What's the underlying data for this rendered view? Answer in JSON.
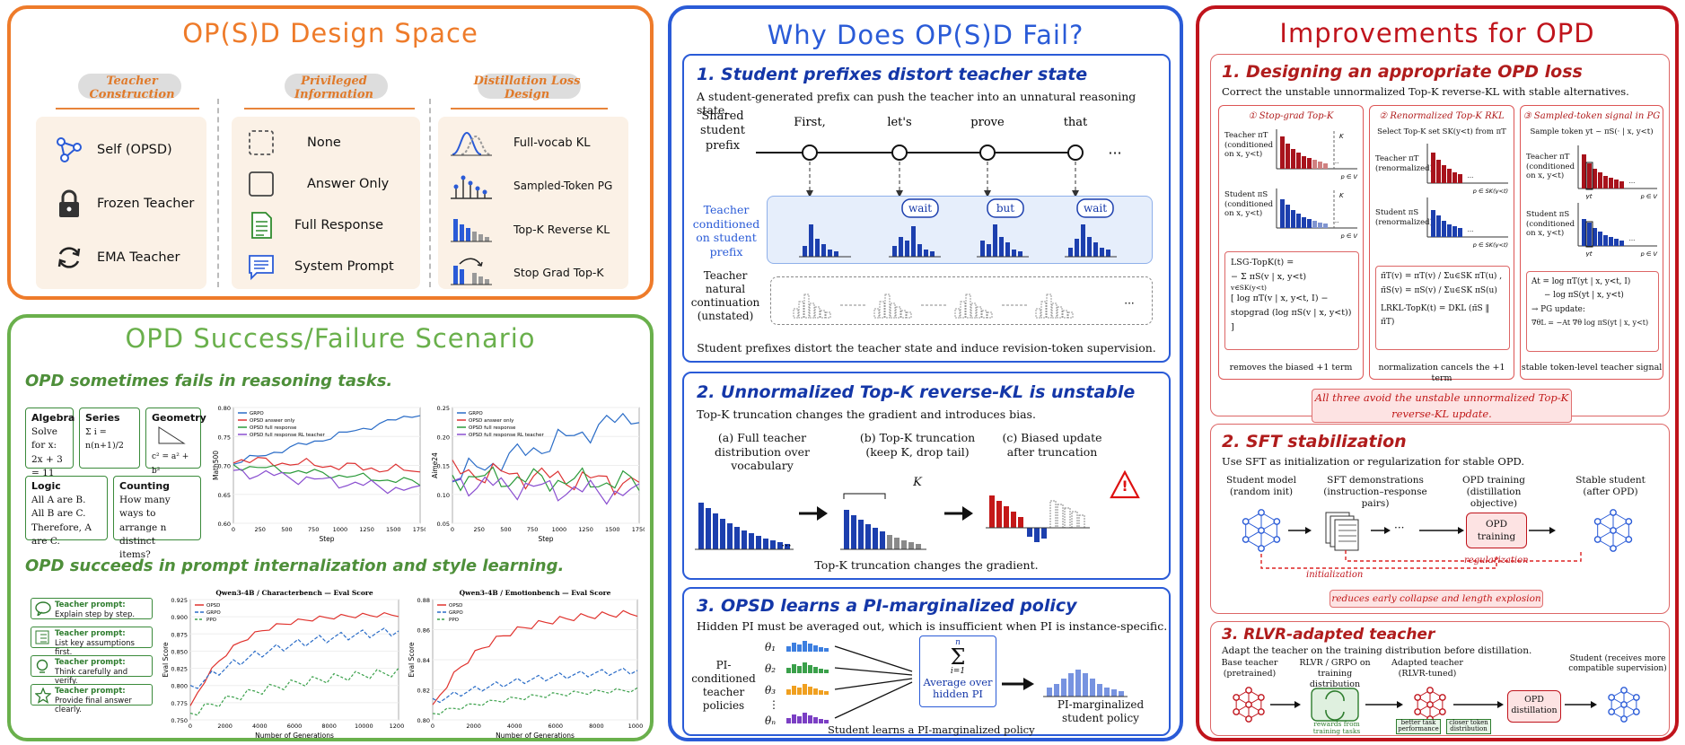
{
  "panel1": {
    "title": "OP(S)D Design Space",
    "col1_head": "Teacher Construction",
    "col2_head": "Privileged Information",
    "col3_head": "Distillation Loss Design",
    "teacher": [
      "Self (OPSD)",
      "Frozen Teacher",
      "EMA Teacher"
    ],
    "info": [
      "None",
      "Answer Only",
      "Full Response",
      "System Prompt"
    ],
    "loss": [
      "Full-vocab KL",
      "Sampled-Token PG",
      "Top-K Reverse KL",
      "Stop Grad Top-K"
    ],
    "icons": [
      "graph-icon",
      "lock-icon",
      "refresh-icon",
      "dashed-square-icon",
      "square-icon",
      "document-icon",
      "chat-icon",
      "distribution-icon",
      "stem-icon",
      "bar-icon",
      "swap-bar-icon"
    ]
  },
  "panel2": {
    "title": "OPD Success/Failure Scenario",
    "h1": "OPD sometimes fails in reasoning tasks.",
    "h2": "OPD succeeds in prompt internalization and style learning.",
    "cards": {
      "algebra_t": "Algebra",
      "algebra_1": "Solve for x:",
      "algebra_2": "2x + 3 = 11",
      "series_t": "Series",
      "series_1": "Σ i = n(n+1)/2",
      "geometry_t": "Geometry",
      "geometry_1": "c² = a² + b²",
      "logic_t": "Logic",
      "logic_1": "All A are B.",
      "logic_2": "All B are C.",
      "logic_3": "Therefore, A are C.",
      "counting_t": "Counting",
      "counting_1": "How many ways to",
      "counting_2": "arrange n distinct",
      "counting_3": "items?"
    },
    "prompts": [
      {
        "t": "Teacher prompt:",
        "s": "Explain step by step."
      },
      {
        "t": "Teacher prompt:",
        "s": "List key assumptions first."
      },
      {
        "t": "Teacher prompt:",
        "s": "Think carefully and verify."
      },
      {
        "t": "Teacher prompt:",
        "s": "Provide final answer clearly."
      }
    ],
    "chart_a": {
      "ylabel": "Math500",
      "xlabel": "Step",
      "ticks_x": [
        "0",
        "250",
        "500",
        "750",
        "1000",
        "1250",
        "1500",
        "1750"
      ],
      "ticks_y": [
        "0.80",
        "0.75",
        "0.70",
        "0.65",
        "0.60"
      ],
      "legend": [
        "GRPO",
        "OPSD answer only",
        "OPSD full response",
        "OPSD full response RL teacher"
      ]
    },
    "chart_b": {
      "ylabel": "Aime24",
      "xlabel": "Step",
      "ticks_x": [
        "0",
        "250",
        "500",
        "750",
        "1000",
        "1250",
        "1500",
        "1750"
      ],
      "ticks_y": [
        "0.25",
        "0.20",
        "0.15",
        "0.10",
        "0.05"
      ],
      "legend": [
        "GRPO",
        "OPSD answer only",
        "OPSD full response",
        "OPSD full response RL teacher"
      ]
    },
    "chart_c": {
      "title": "Qwen3-4B / Characterbench — Eval Score",
      "ylabel": "Eval Score",
      "xlabel": "Number of Generations",
      "ticks_x": [
        "0",
        "2000",
        "4000",
        "6000",
        "8000",
        "10000",
        "12000"
      ],
      "ticks_y": [
        "0.925",
        "0.900",
        "0.875",
        "0.850",
        "0.825",
        "0.800",
        "0.775",
        "0.750"
      ],
      "legend": [
        "OPSD",
        "GRPO",
        "PPO"
      ]
    },
    "chart_d": {
      "title": "Qwen3-4B / Emotionbench — Eval Score",
      "ylabel": "Eval Score",
      "xlabel": "Number of Generations",
      "ticks_x": [
        "0",
        "2000",
        "4000",
        "6000",
        "8000",
        "10000"
      ],
      "ticks_y": [
        "0.88",
        "0.86",
        "0.84",
        "0.82",
        "0.80"
      ],
      "legend": [
        "OPSD",
        "GRPO",
        "PPO"
      ]
    }
  },
  "panel3": {
    "title": "Why Does OP(S)D Fail?",
    "s1": {
      "h": "1. Student prefixes distort teacher state",
      "sub": "A student-generated prefix can push the teacher into an unnatural reasoning state.",
      "shared": "Shared student prefix",
      "tokens": [
        "First,",
        "let's",
        "prove",
        "that"
      ],
      "dots": "···",
      "teacher_cond": "Teacher conditioned on student prefix",
      "bubbles": [
        "wait",
        "but",
        "wait"
      ],
      "teacher_nat": "Teacher natural continuation (unstated)",
      "caption": "Student prefixes distort the teacher state and induce revision-token supervision."
    },
    "s2": {
      "h": "2. Unnormalized Top-K reverse-KL is unstable",
      "sub": "Top-K truncation changes the gradient and introduces bias.",
      "a": "(a) Full teacher distribution over vocabulary",
      "b": "(b) Top-K truncation (keep K, drop tail)",
      "c": "(c) Biased update after truncation",
      "k": "K",
      "caption": "Top-K truncation changes the gradient.",
      "warn": "!"
    },
    "s3": {
      "h": "3. OPSD learns a PI-marginalized policy",
      "sub": "Hidden PI must be averaged out, which is insufficient when PI is instance-specific.",
      "left": "PI-conditioned teacher policies",
      "thetas": [
        "θ₁",
        "θ₂",
        "θ₃",
        "⋮",
        "θₙ"
      ],
      "sum_top": "n",
      "sum": "Σ",
      "sum_bot": "i=1",
      "avg": "Average over hidden PI",
      "right": "PI-marginalized student policy",
      "caption": "Student learns a PI-marginalized policy"
    }
  },
  "panel4": {
    "title": "Improvements for OPD",
    "s1": {
      "h": "1. Designing an appropriate OPD loss",
      "sub": "Correct the unstable unnormalized Top-K reverse-KL with stable alternatives.",
      "c1": "① Stop-grad Top-K",
      "c2": "② Renormalized Top-K RKL",
      "c3": "③ Sampled-token signal in PG",
      "c1_teacher": "Teacher πT (conditioned on x, y<t)",
      "c1_student": "Student πS (conditioned on x, y<t)",
      "c2_sel": "Select Top-K set SK(y<t) from πT",
      "c2_teacher": "Teacher πT (renormalized)",
      "c2_student": "Student πS (renormalized)",
      "c3_sample": "Sample token yt ~ πS(· | x, y<t)",
      "c3_teacher": "Teacher πT (conditioned on x, y<t)",
      "c3_student": "Student πS (conditioned on x, y<t)",
      "axis_v": "p ∈ V",
      "axis_s": "p ∈ SK(y<t)",
      "kmark": "K",
      "yt": "yt",
      "f1a": "LSG-TopK(t) =",
      "f1b": "− Σ πS(v | x, y<t)",
      "f1c": "v∈SK(y<t)",
      "f1d": "[ log πT(v | x, y<t, I) −",
      "f1e": "stopgrad (log πS(v | x, y<t)) ]",
      "f2a": "π̄T(v) = πT(v) / Σu∈SK πT(u) ,",
      "f2b": "π̄S(v) = πS(v) / Σu∈SK πS(u)",
      "f2c": "LRKL-TopK(t) = DKL (π̄S ‖ π̄T)",
      "f3a": "At = log πT(yt | x, y<t, I)",
      "f3b": "− log πS(yt | x, y<t)",
      "f3c": "→ PG update:",
      "f3d": "∇θL = −At ∇θ log πS(yt | x, y<t)",
      "n1": "removes the biased +1 term",
      "n2": "normalization cancels the +1 term",
      "n3": "stable token-level teacher signal",
      "bar": "All three avoid the unstable unnormalized Top-K reverse-KL update."
    },
    "s2": {
      "h": "2. SFT stabilization",
      "sub": "Use SFT as initialization or regularization for stable OPD.",
      "n1": "Student model (random init)",
      "n2": "SFT demonstrations (instruction–response pairs)",
      "n3": "OPD training (distillation objective)",
      "n4": "Stable student (after OPD)",
      "box": "OPD training",
      "init": "initialization",
      "reg": "regularization",
      "dots": "···",
      "bar": "reduces early collapse and length explosion"
    },
    "s3": {
      "h": "3. RLVR-adapted teacher",
      "sub": "Adapt the teacher on the training distribution before distillation.",
      "n1": "Base teacher (pretrained)",
      "n2": "RLVR / GRPO on training distribution",
      "n3": "Adapted teacher (RLVR-tuned)",
      "n4": "Student (receives more compatible supervision)",
      "box": "OPD distillation",
      "reward": "rewards from training tasks",
      "b1": "better task performance",
      "b2": "closer token distribution"
    }
  },
  "colors": {
    "orange": "#ee7b2a",
    "green": "#6ab04c",
    "blue": "#2a5bd7",
    "red": "#c0141c",
    "navy": "#1437a8",
    "darkred": "#b01c1c"
  }
}
